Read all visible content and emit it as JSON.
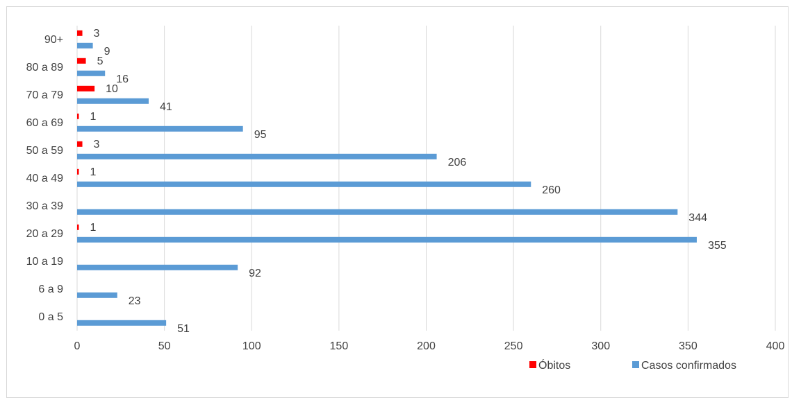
{
  "chart_data": {
    "type": "bar",
    "orientation": "horizontal",
    "categories": [
      "0 a 5",
      "6 a 9",
      "10 a 19",
      "20 a 29",
      "30 a 39",
      "40 a 49",
      "50 a 59",
      "60 a 69",
      "70 a 79",
      "80 a 89",
      "90+"
    ],
    "series": [
      {
        "name": "Casos confirmados",
        "color": "#5b9bd5",
        "values": [
          51,
          23,
          92,
          355,
          344,
          260,
          206,
          95,
          41,
          16,
          9
        ]
      },
      {
        "name": "Óbitos",
        "color": "#ff0000",
        "values": [
          null,
          null,
          null,
          1,
          null,
          1,
          3,
          1,
          10,
          5,
          3
        ]
      }
    ],
    "xlim": [
      0,
      400
    ],
    "xticks": [
      "0",
      "50",
      "100",
      "150",
      "200",
      "250",
      "300",
      "350",
      "400"
    ],
    "xtick_values": [
      0,
      50,
      100,
      150,
      200,
      250,
      300,
      350,
      400
    ],
    "gridlines": true,
    "legend_position": "bottom-right",
    "legend_order": [
      "Óbitos",
      "Casos confirmados"
    ]
  }
}
